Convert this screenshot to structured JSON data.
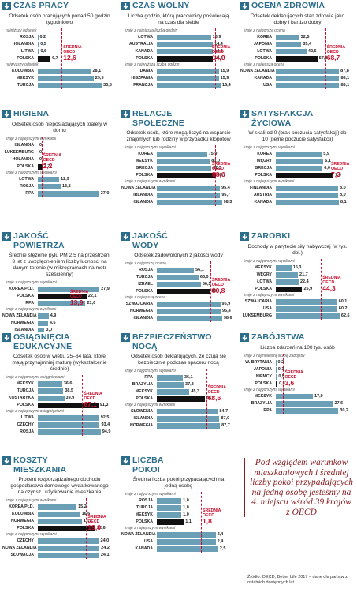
{
  "chart_data": [
    {
      "type": "bar",
      "title": [
        "CZAS PRACY"
      ],
      "subtitle": "Odsetek osób pracujących ponad 50 godzin tygodniowo",
      "xlim": [
        0,
        35
      ],
      "groups": [
        {
          "label": "najniższy odsetek",
          "categories": [
            "ROSJA",
            "HOLANDIA",
            "LITWA",
            "POLSKA"
          ],
          "values": [
            0.2,
            0.5,
            0.6,
            6.7
          ],
          "value_labels": [
            "0,2",
            "0,5",
            "0,6",
            "6,7"
          ],
          "colors": [
            "#6a9fb5",
            "#6a9fb5",
            "#6a9fb5",
            "#111111"
          ]
        },
        {
          "label": "najwyższy odsetek",
          "categories": [
            "KOLUMBIA",
            "MEKSYK",
            "TURCJA"
          ],
          "values": [
            28.1,
            29.5,
            33.8
          ],
          "value_labels": [
            "28,1",
            "29,5",
            "33,8"
          ],
          "colors": [
            "#6a9fb5",
            "#6a9fb5",
            "#6a9fb5"
          ]
        }
      ],
      "oecd": {
        "label": "ŚREDNIA OECD",
        "value": 12.6,
        "value_label": "12,6",
        "color": "#c8102e"
      }
    },
    {
      "type": "bar",
      "title": [
        "CZAS WOLNY"
      ],
      "subtitle": "Liczba godzin, którą pracownicy poświęcają na czas dla siebie",
      "xlim": [
        0,
        17
      ],
      "groups": [
        {
          "label": "kraje z najniższą liczbą godzin",
          "categories": [
            "ŁOTWA",
            "AUSTRALIA",
            "KANADA",
            "POLSKA"
          ],
          "values": [
            13.9,
            14.4,
            14.4,
            14.4
          ],
          "value_labels": [
            "13,9",
            "14,4",
            "14,4",
            "14,4"
          ],
          "colors": [
            "#6a9fb5",
            "#6a9fb5",
            "#6a9fb5",
            "#111111"
          ]
        },
        {
          "label": "kraje z najwyższą liczbą godzin",
          "categories": [
            "DANIA",
            "HISZPANIA",
            "FRANCJA"
          ],
          "values": [
            15.9,
            15.9,
            16.4
          ],
          "value_labels": [
            "15,9",
            "15,9",
            "16,4"
          ],
          "colors": [
            "#6a9fb5",
            "#6a9fb5",
            "#6a9fb5"
          ]
        }
      ],
      "oecd": {
        "label": "ŚREDNIA OECD",
        "value": 14.9,
        "value_label": "14,9",
        "color": "#c8102e"
      }
    },
    {
      "type": "bar",
      "title": [
        "OCENA ZDROWIA"
      ],
      "subtitle": "Odsetek deklarujących stan zdrowia jako dobry i bardzo dobry",
      "xlim": [
        0,
        92
      ],
      "groups": [
        {
          "label": "kraje z najgorszą oceną",
          "categories": [
            "KOREA",
            "JAPONIA",
            "ŁOTWA",
            "POLSKA"
          ],
          "values": [
            32.5,
            35.4,
            42.6,
            57.8
          ],
          "value_labels": [
            "32,5",
            "35,4",
            "42,6",
            "57,8"
          ],
          "colors": [
            "#6a9fb5",
            "#6a9fb5",
            "#6a9fb5",
            "#111111"
          ]
        },
        {
          "label": "kraje z najlepszą oceną",
          "categories": [
            "NOWA ZELANDIA",
            "KANADA",
            "USA"
          ],
          "values": [
            87.8,
            88.1,
            88.1
          ],
          "value_labels": [
            "87,8",
            "88,1",
            "88,1"
          ],
          "colors": [
            "#6a9fb5",
            "#6a9fb5",
            "#6a9fb5"
          ]
        }
      ],
      "oecd": {
        "label": "ŚREDNIA OECD",
        "value": 68.7,
        "value_label": "68,7",
        "color": "#c8102e"
      }
    },
    {
      "type": "bar",
      "title": [
        "HIGIENA"
      ],
      "subtitle": "Odsetek osób nieposiadających toalety w domu",
      "xlim": [
        0,
        40
      ],
      "groups": [
        {
          "label": "kraje z najlepszymi wynikami",
          "categories": [
            "ISLANDIA",
            "LUKSEMBURG",
            "HOLANDIA",
            "POLSKA"
          ],
          "values": [
            0,
            0,
            0,
            2.7
          ],
          "value_labels": [
            "0",
            "0",
            "0",
            "2,7"
          ],
          "colors": [
            "#6a9fb5",
            "#6a9fb5",
            "#6a9fb5",
            "#111111"
          ]
        },
        {
          "label": "kraje z najgorszymi wynikami",
          "categories": [
            "ŁOTWA",
            "ROSJA",
            "RPA"
          ],
          "values": [
            12.9,
            13.8,
            37.0
          ],
          "value_labels": [
            "12,9",
            "13,8",
            "37,0"
          ],
          "colors": [
            "#6a9fb5",
            "#6a9fb5",
            "#6a9fb5"
          ]
        }
      ],
      "oecd": {
        "label": "ŚREDNIA OECD",
        "value": 2.2,
        "value_label": "2,2",
        "color": "#c8102e"
      }
    },
    {
      "type": "bar",
      "title": [
        "RELACJE",
        "SPOŁECZNE"
      ],
      "subtitle": "Odsetek osób, które mogą liczyć na wsparcie znajomych lub rodziny w przypadku kłopotów",
      "xlim": [
        0,
        100
      ],
      "groups": [
        {
          "label": "kraje z najgorszymi wynikami",
          "categories": [
            "KOREA",
            "MEKSYK",
            "GRECJA",
            "POLSKA"
          ],
          "values": [
            75.9,
            80.0,
            82.3,
            88.7
          ],
          "value_labels": [
            "75,9",
            "80,0",
            "82,3",
            "88,7"
          ],
          "colors": [
            "#6a9fb5",
            "#6a9fb5",
            "#6a9fb5",
            "#111111"
          ]
        },
        {
          "label": "kraje z najlepszymi wynikami",
          "categories": [
            "NOWA ZELANDIA",
            "IRLANDIA",
            "ISLANDIA"
          ],
          "values": [
            95.4,
            95.7,
            98.3
          ],
          "value_labels": [
            "95,4",
            "95,7",
            "98,3"
          ],
          "colors": [
            "#6a9fb5",
            "#6a9fb5",
            "#6a9fb5"
          ]
        }
      ],
      "oecd": {
        "label": "ŚREDNIA OECD",
        "value": 88.6,
        "value_label": "88,6",
        "color": "#c8102e"
      }
    },
    {
      "type": "bar",
      "title": [
        "SATYSFAKCJA",
        "ŻYCIOWA"
      ],
      "subtitle": "W skali od 0 (brak poczucia satysfakcji) do 10 (pełne poczucie satysfakcji)",
      "xlim": [
        0,
        8.5
      ],
      "groups": [
        {
          "label": "kraje z najgorszymi wynikami",
          "categories": [
            "KOREA",
            "WĘGRY",
            "GRECJA",
            "POLSKA"
          ],
          "values": [
            5.9,
            6.1,
            6.0,
            7.4
          ],
          "value_labels": [
            "5,9",
            "6,1",
            "6,0",
            "7,4"
          ],
          "colors": [
            "#6a9fb5",
            "#6a9fb5",
            "#6a9fb5",
            "#111111"
          ]
        },
        {
          "label": "kraje z najlepszymi wynikami",
          "categories": [
            "FINLANDIA",
            "AUSTRIA",
            "KANADA"
          ],
          "values": [
            8.0,
            8.0,
            8.1
          ],
          "value_labels": [
            "8,0",
            "8,0",
            "8,1"
          ],
          "colors": [
            "#6a9fb5",
            "#6a9fb5",
            "#6a9fb5"
          ]
        }
      ],
      "oecd": {
        "label": "ŚREDNIA OECD",
        "value": 7.3,
        "value_label": "7,3",
        "color": "#c8102e"
      }
    },
    {
      "type": "bar",
      "title": [
        "JAKOŚĆ",
        "POWIETRZA"
      ],
      "subtitle": "Średnie stężenie pyłu PM 2,5 na przestrzeni 3 lat z uwzględnieniem liczby ludności na danym terenie (w mikrogramach na metr sześcienny)",
      "xlim": [
        0,
        30
      ],
      "groups": [
        {
          "label": "kraje z najgorszymi wynikami",
          "categories": [
            "KOREA PŁD.",
            "POLSKA",
            "RPA"
          ],
          "values": [
            27.9,
            22.1,
            21.6
          ],
          "value_labels": [
            "27,9",
            "22,1",
            "21,6"
          ],
          "colors": [
            "#6a9fb5",
            "#111111",
            "#6a9fb5"
          ]
        },
        {
          "label": "kraje z najlepszymi wynikami",
          "categories": [
            "NOWA ZELANDIA",
            "NORWEGIA",
            "ISLANDIA"
          ],
          "values": [
            4.9,
            4.6,
            3.0
          ],
          "value_labels": [
            "4,9",
            "4,6",
            "3,0"
          ],
          "colors": [
            "#6a9fb5",
            "#6a9fb5",
            "#6a9fb5"
          ]
        }
      ],
      "oecd": {
        "label": "ŚREDNIA OECD",
        "value": 13.9,
        "value_label": "13,9",
        "color": "#c8102e"
      }
    },
    {
      "type": "bar",
      "title": [
        "JAKOŚĆ",
        "WODY"
      ],
      "subtitle": "Odsetek zadowolonych z jakości wody",
      "xlim": [
        0,
        100
      ],
      "groups": [
        {
          "label": "kraje z najgorszą oceną",
          "categories": [
            "ROSJA",
            "TURCJA",
            "IZRAEL",
            "POLSKA"
          ],
          "values": [
            56.1,
            63.0,
            66.5,
            80
          ],
          "value_labels": [
            "56,1",
            "63,0",
            "66,5",
            "80"
          ],
          "colors": [
            "#6a9fb5",
            "#6a9fb5",
            "#6a9fb5",
            "#111111"
          ]
        },
        {
          "label": "kraje z najlepszą oceną",
          "categories": [
            "SZWAJCARIA",
            "NORWEGIA",
            "ISLANDIA"
          ],
          "values": [
            95.9,
            96.4,
            98.6
          ],
          "value_labels": [
            "95,9",
            "96,4",
            "98,6"
          ],
          "colors": [
            "#6a9fb5",
            "#6a9fb5",
            "#6a9fb5"
          ]
        }
      ],
      "oecd": {
        "label": "ŚREDNIA OECD",
        "value": 80.8,
        "value_label": "80,8",
        "color": "#c8102e"
      }
    },
    {
      "type": "bar",
      "title": [
        "ZAROBKI"
      ],
      "subtitle": "Dochody w parytecie siły nabywczej (w tys. dol.)",
      "xlim": [
        0,
        65
      ],
      "groups": [
        {
          "label": "kraje z najgorszymi wynikami",
          "categories": [
            "MEKSYK",
            "WĘGRY",
            "ŁOTWA",
            "POLSKA"
          ],
          "values": [
            15.3,
            21.7,
            22.4,
            25.9
          ],
          "value_labels": [
            "15,3",
            "21,7",
            "22,4",
            "25,9"
          ],
          "colors": [
            "#6a9fb5",
            "#6a9fb5",
            "#6a9fb5",
            "#111111"
          ]
        },
        {
          "label": "kraje z najlepszymi wynikami",
          "categories": [
            "SZWAJCARIA",
            "USA",
            "LUKSEMBURG"
          ],
          "values": [
            60.1,
            60.2,
            62.6
          ],
          "value_labels": [
            "60,1",
            "60,2",
            "62,6"
          ],
          "colors": [
            "#6a9fb5",
            "#6a9fb5",
            "#6a9fb5"
          ]
        }
      ],
      "oecd": {
        "label": "ŚREDNIA OECD",
        "value": 44.3,
        "value_label": "44,3",
        "color": "#c8102e"
      }
    },
    {
      "type": "bar",
      "title": [
        "OSIĄGNIĘCIA",
        "EDUKACYJNE"
      ],
      "subtitle": "Odsetek osób w wieku 25–64 lata, które mają przynajmniej maturę (wykształcenie średnie)",
      "xlim": [
        0,
        100
      ],
      "groups": [
        {
          "label": "kraje z najgorszymi osiągnięciami",
          "categories": [
            "MEKSYK",
            "TURCJA",
            "KOSTARYKA",
            "POLSKA"
          ],
          "values": [
            36.6,
            38.5,
            39.9,
            91.3
          ],
          "value_labels": [
            "36,6",
            "38,5",
            "39,9",
            "91,3"
          ],
          "colors": [
            "#6a9fb5",
            "#6a9fb5",
            "#6a9fb5",
            "#111111"
          ]
        },
        {
          "label": "kraje z najlepszymi osiągnięciami",
          "categories": [
            "LITWA",
            "CZECHY",
            "ROSJA"
          ],
          "values": [
            92.5,
            93.4,
            94.9
          ],
          "value_labels": [
            "92,5",
            "93,4",
            "94,9"
          ],
          "colors": [
            "#6a9fb5",
            "#6a9fb5",
            "#6a9fb5"
          ]
        }
      ],
      "oecd": {
        "label": "ŚREDNIA OECD",
        "value": 67.1,
        "value_label": "67,1",
        "color": "#c8102e"
      }
    },
    {
      "type": "bar",
      "title": [
        "BEZPIECZEŃSTWO",
        "NOCĄ"
      ],
      "subtitle": "Odsetek osób deklarujących, że czują się bezpiecznie podczas spaceru nocą",
      "xlim": [
        0,
        92
      ],
      "groups": [
        {
          "label": "kraje z najgorszymi wynikami",
          "categories": [
            "RPA",
            "BRAZYLIA",
            "MEKSYK",
            "POLSKA"
          ],
          "values": [
            36.1,
            37.3,
            45.3,
            66.3
          ],
          "value_labels": [
            "36,1",
            "37,3",
            "45,3",
            "66,3"
          ],
          "colors": [
            "#6a9fb5",
            "#6a9fb5",
            "#6a9fb5",
            "#111111"
          ]
        },
        {
          "label": "kraje z najlepszymi wynikami",
          "categories": [
            "SŁOWENIA",
            "ISLANDIA",
            "NORWEGIA"
          ],
          "values": [
            84.7,
            87.0,
            87.7
          ],
          "value_labels": [
            "84,7",
            "87,0",
            "87,7"
          ],
          "colors": [
            "#6a9fb5",
            "#6a9fb5",
            "#6a9fb5"
          ]
        }
      ],
      "oecd": {
        "label": "ŚREDNIA OECD",
        "value": 68.6,
        "value_label": "68,6",
        "color": "#c8102e"
      }
    },
    {
      "type": "bar",
      "title": [
        "ZABÓJSTWA"
      ],
      "subtitle": "Liczba zdarzeń na 100 tys. osób",
      "xlim": [
        0,
        32
      ],
      "groups": [
        {
          "label": "kraje z najmniejszą liczbą zabójstw",
          "categories": [
            "W. BRYTANIA",
            "JAPONIA",
            "NIEMCY",
            "POLSKA"
          ],
          "values": [
            0.2,
            0.3,
            0.5,
            0.8
          ],
          "value_labels": [
            "0,2",
            "0,3",
            "0,5",
            "0,8"
          ],
          "colors": [
            "#6a9fb5",
            "#6a9fb5",
            "#6a9fb5",
            "#111111"
          ]
        },
        {
          "label": "kraje z najgorszymi wynikami",
          "categories": [
            "MEKSYK",
            "BRAZYLIA",
            "RPA"
          ],
          "values": [
            17.9,
            27.6,
            30.2
          ],
          "value_labels": [
            "17,9",
            "27,6",
            "30,2"
          ],
          "colors": [
            "#6a9fb5",
            "#6a9fb5",
            "#6a9fb5"
          ]
        }
      ],
      "oecd": {
        "label": "ŚREDNIA OECD",
        "value": 3.6,
        "value_label": "3,6",
        "color": "#c8102e"
      }
    },
    {
      "type": "bar",
      "title": [
        "KOSZTY",
        "MIESZKANIA"
      ],
      "subtitle": "Procent rozporządzalnego dochodu gospodarstwa domowego wydatkowanego na czynsz i użytkowanie mieszkania",
      "xlim": [
        0,
        26
      ],
      "groups": [
        {
          "label": "kraje z najlepszymi wynikami",
          "categories": [
            "KOREA PŁD.",
            "KOLUMBIA",
            "NORWEGIA",
            "POLSKA"
          ],
          "values": [
            15.2,
            16.6,
            17.3,
            22.6
          ],
          "value_labels": [
            "15,2",
            "16,6",
            "17,3",
            "22,6"
          ],
          "colors": [
            "#6a9fb5",
            "#6a9fb5",
            "#6a9fb5",
            "#111111"
          ]
        },
        {
          "label": "kraje z najgorszymi wynikami",
          "categories": [
            "CZECHY",
            "NOWA ZELANDIA",
            "SŁOWACJA"
          ],
          "values": [
            24.0,
            24.2,
            24.1
          ],
          "value_labels": [
            "24,0",
            "24,2",
            "24,1"
          ],
          "colors": [
            "#6a9fb5",
            "#6a9fb5",
            "#6a9fb5"
          ]
        }
      ],
      "oecd": {
        "label": "ŚREDNIA OECD",
        "value": 19.0,
        "value_label": "19,0",
        "color": "#c8102e"
      }
    },
    {
      "type": "bar",
      "title": [
        "LICZBA",
        "POKOI"
      ],
      "subtitle": "Średnia liczba pokoi przypadających na jedną osobę",
      "xlim": [
        0,
        2.7
      ],
      "groups": [
        {
          "label": "kraje z najgorszymi wynikami",
          "categories": [
            "ROSJA",
            "TURCJA",
            "MEKSYK",
            "POLSKA"
          ],
          "values": [
            1.0,
            1.0,
            1.0,
            1.1
          ],
          "value_labels": [
            "1,0",
            "1,0",
            "1,0",
            "1,1"
          ],
          "colors": [
            "#6a9fb5",
            "#6a9fb5",
            "#6a9fb5",
            "#111111"
          ]
        },
        {
          "label": "kraje z najlepszymi wynikami",
          "categories": [
            "NOWA ZELANDIA",
            "USA",
            "KANADA"
          ],
          "values": [
            2.4,
            2.4,
            2.5
          ],
          "value_labels": [
            "2,4",
            "2,4",
            "2,5"
          ],
          "colors": [
            "#6a9fb5",
            "#6a9fb5",
            "#6a9fb5"
          ]
        }
      ],
      "oecd": {
        "label": "ŚREDNIA OECD",
        "value": 1.8,
        "value_label": "1,8",
        "color": "#c8102e"
      }
    }
  ],
  "quote": "Pod względem warunków mieszkaniowych i średniej liczby pokoi przypadających na jedną osobę jesteśmy na 4. miejscu wśród 39 krajów z OECD",
  "source": "Źródło: OECD, Better Life 2017 – dane dla państw z ostatnich dostępnych lat"
}
